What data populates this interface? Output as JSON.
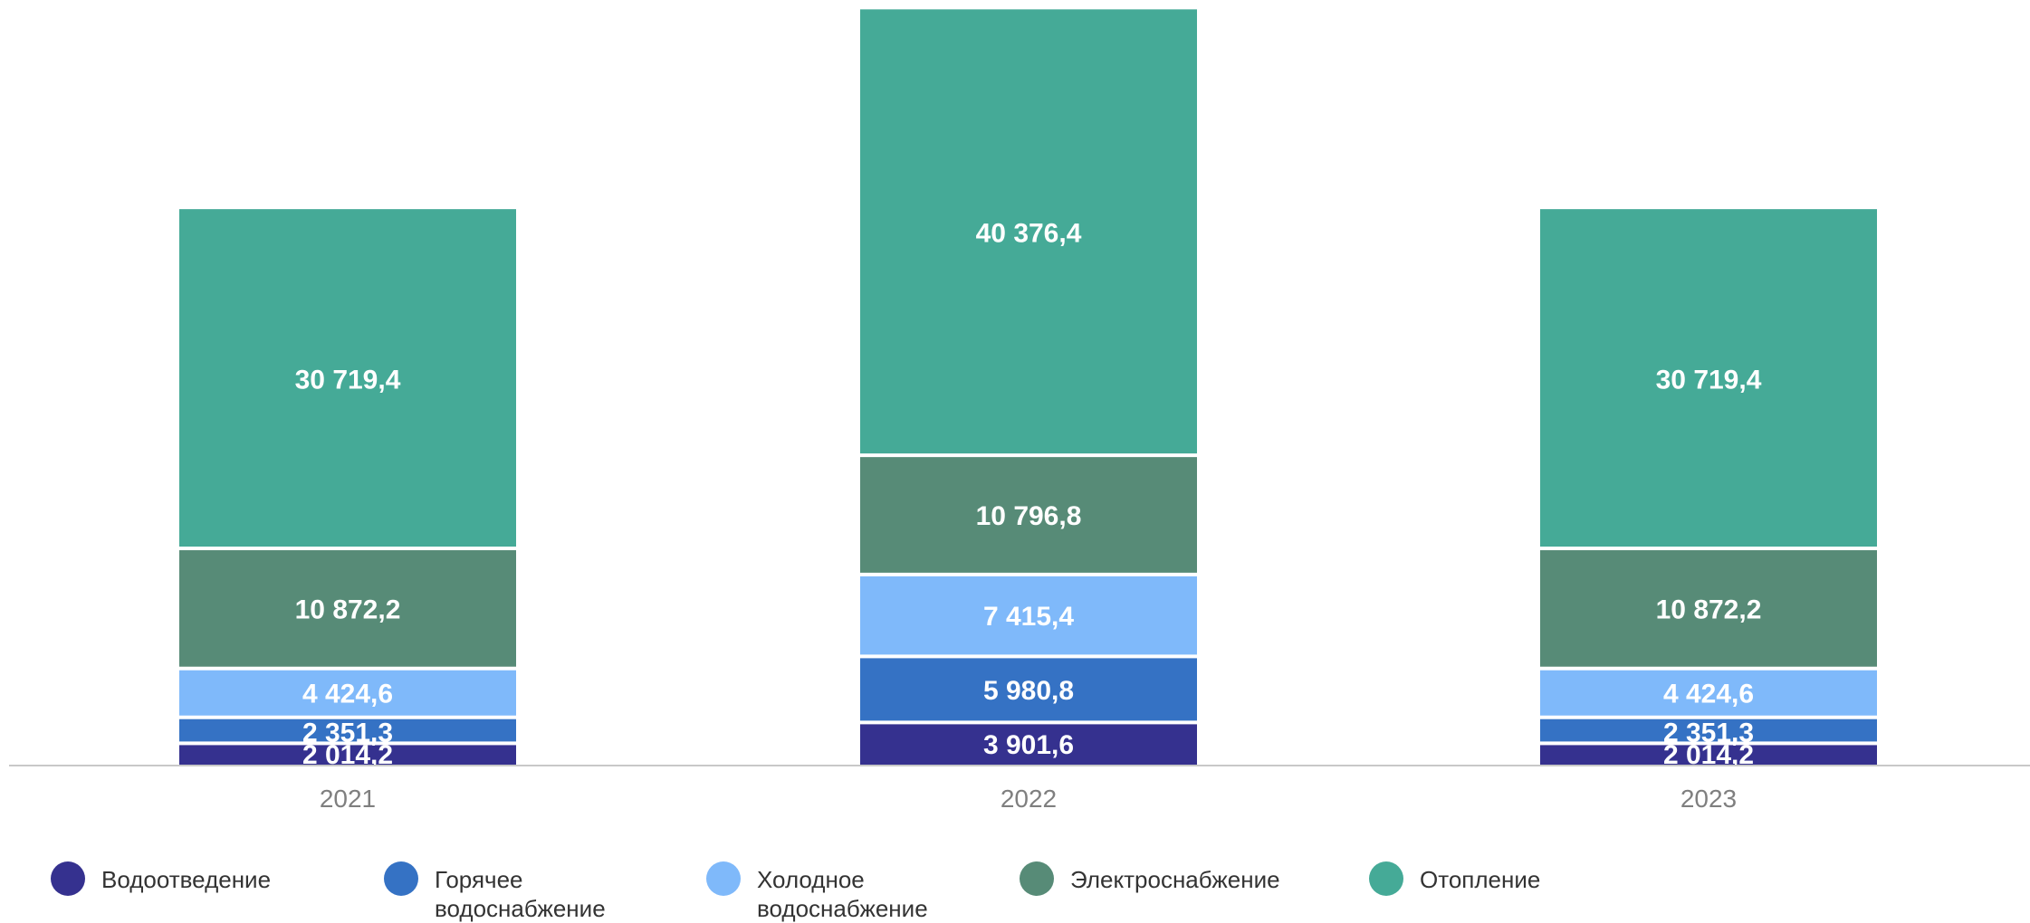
{
  "chart_data": {
    "type": "bar",
    "stacked": true,
    "categories": [
      "2021",
      "2022",
      "2023"
    ],
    "series": [
      {
        "name": "Водоотведение",
        "color": "#35318f",
        "values": [
          2014.2,
          3901.6,
          2014.2
        ],
        "labels": [
          "2 014,2",
          "3 901,6",
          "2 014,2"
        ]
      },
      {
        "name": "Горячее водоснабжение",
        "color": "#3572c4",
        "values": [
          2351.3,
          5980.8,
          2351.3
        ],
        "labels": [
          "2 351,3",
          "5 980,8",
          "2 351,3"
        ]
      },
      {
        "name": "Холодное водоснабжение",
        "color": "#7fb9fa",
        "values": [
          4424.6,
          7415.4,
          4424.6
        ],
        "labels": [
          "4 424,6",
          "7 415,4",
          "4 424,6"
        ]
      },
      {
        "name": "Электроснабжение",
        "color": "#578b77",
        "values": [
          10872.2,
          10796.8,
          10872.2
        ],
        "labels": [
          "10 872,2",
          "10 796,8",
          "10 872,2"
        ]
      },
      {
        "name": "Отопление",
        "color": "#45aa97",
        "values": [
          30719.4,
          40376.4,
          30719.4
        ],
        "labels": [
          "30 719,4",
          "40 376,4",
          "30 719,4"
        ]
      }
    ],
    "title": "",
    "xlabel": "",
    "ylabel": "",
    "ylim": [
      0,
      68500
    ],
    "grid": false,
    "legend_position": "bottom"
  }
}
